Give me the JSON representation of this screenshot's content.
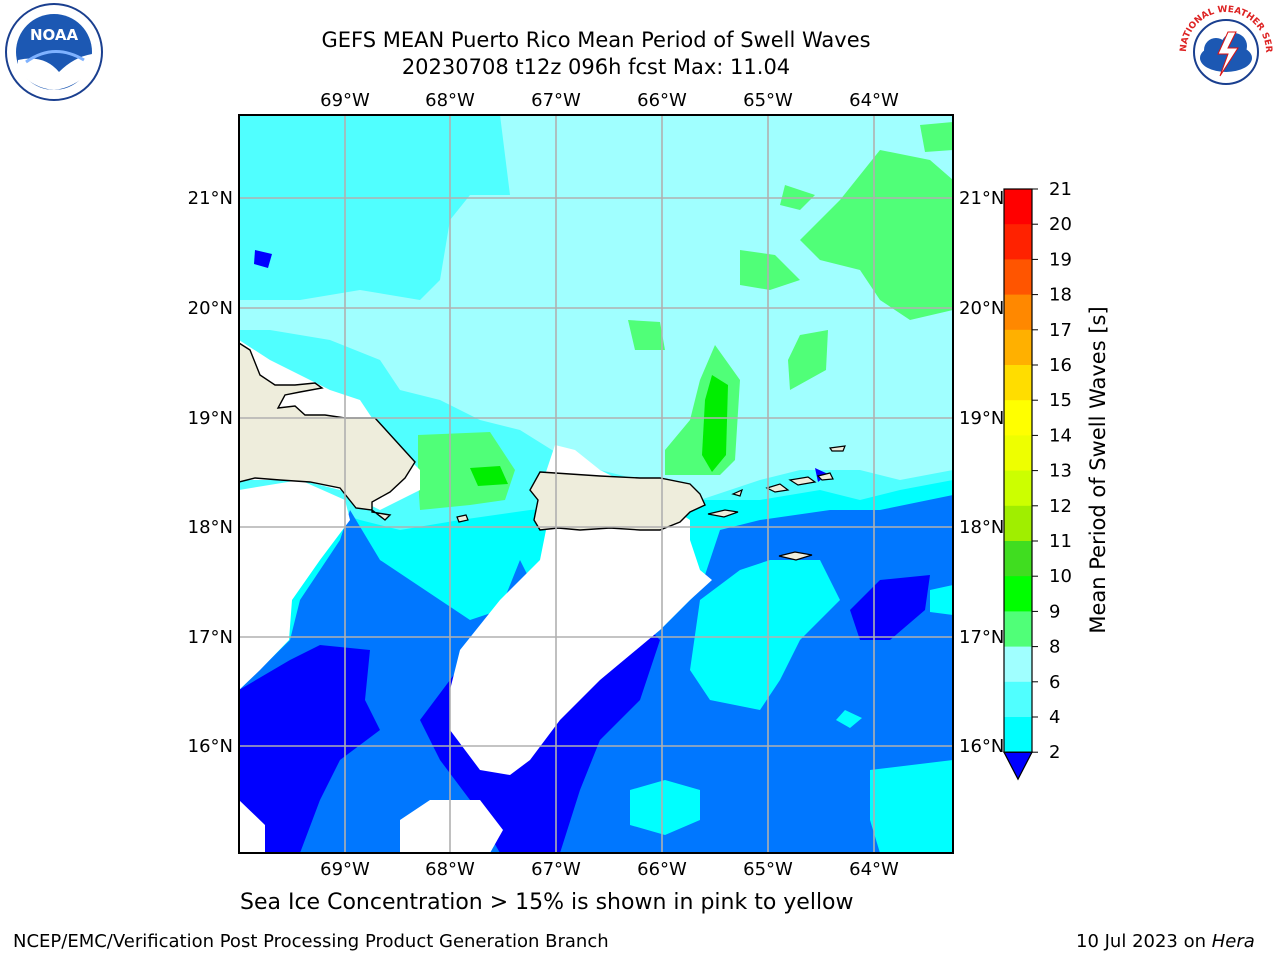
{
  "header": {
    "title_line1": "GEFS MEAN Puerto Rico Mean Period of Swell Waves",
    "title_line2": "20230708 t12z 096h fcst   Max: 11.04"
  },
  "logos": {
    "left": {
      "icon": "noaa-logo-icon",
      "text": "NOAA"
    },
    "right": {
      "icon": "nws-logo-icon",
      "text": "NATIONAL WEATHER SERVICE"
    }
  },
  "map": {
    "lon_labels": [
      "69°W",
      "68°W",
      "67°W",
      "66°W",
      "65°W",
      "64°W"
    ],
    "lat_labels": [
      "21°N",
      "20°N",
      "19°N",
      "18°N",
      "17°N",
      "16°N"
    ],
    "colors": {
      "land": "#eeeddc",
      "grid": "#b0b0b0",
      "coast": "#000000"
    }
  },
  "colorbar": {
    "label": "Mean Period of Swell Waves [s]",
    "ticks": [
      "2",
      "4",
      "6",
      "8",
      "9",
      "10",
      "11",
      "12",
      "13",
      "14",
      "15",
      "16",
      "17",
      "18",
      "19",
      "20",
      "21"
    ],
    "colors": [
      "#0000ff",
      "#0077ff",
      "#00ffff",
      "#50ffff",
      "#a0ffff",
      "#50ff78",
      "#00ff00",
      "#40dd20",
      "#a0ee00",
      "#ccff00",
      "#eeff00",
      "#ffff00",
      "#ffdd00",
      "#ffb000",
      "#ff8800",
      "#ff5500",
      "#ff2200",
      "#ff0000"
    ]
  },
  "caption": "Sea Ice Concentration > 15% is shown in pink to yellow",
  "footer": {
    "left": "NCEP/EMC/Verification Post Processing Product Generation Branch",
    "date": "10 Jul 2023 on ",
    "machine": "Hera"
  }
}
